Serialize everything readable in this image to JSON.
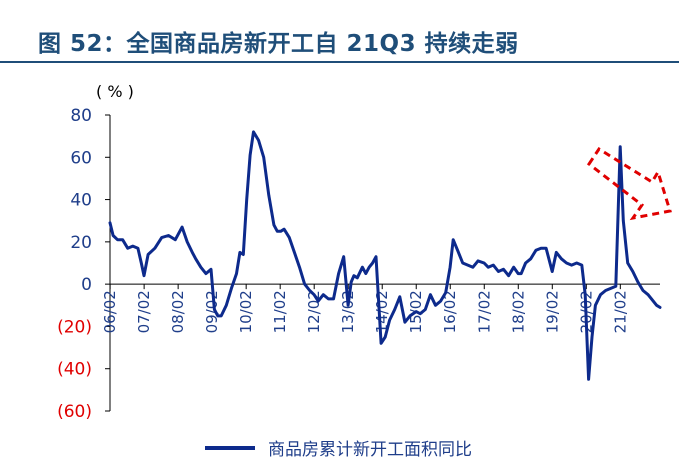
{
  "figure": {
    "title": "图 52：全国商品房新开工自 21Q3 持续走弱"
  },
  "chart_data": {
    "type": "line",
    "unit": "( % )",
    "ylim": [
      -60,
      80
    ],
    "yticks": [
      "80",
      "60",
      "40",
      "20",
      "0",
      "(20)",
      "(40)",
      "(60)"
    ],
    "ytick_values": [
      80,
      60,
      40,
      20,
      0,
      -20,
      -40,
      -60
    ],
    "ytick_colors": [
      "#1f3e8a",
      "#1f3e8a",
      "#1f3e8a",
      "#1f3e8a",
      "#1f3e8a",
      "#e00000",
      "#e00000",
      "#e00000"
    ],
    "xticks": [
      "06/02",
      "07/02",
      "08/02",
      "09/02",
      "10/02",
      "11/02",
      "12/02",
      "13/02",
      "14/02",
      "15/02",
      "16/02",
      "17/02",
      "18/02",
      "19/02",
      "20/02",
      "21/02"
    ],
    "xlim": [
      2006.08,
      2022.25
    ],
    "legend_position": "bottom",
    "series": [
      {
        "name": "商品房累计新开工面积同比",
        "color": "#0d2a8c",
        "x": [
          2006.08,
          2006.17,
          2006.3,
          2006.45,
          2006.6,
          2006.75,
          2006.9,
          2007.0,
          2007.08,
          2007.2,
          2007.4,
          2007.6,
          2007.8,
          2008.0,
          2008.2,
          2008.35,
          2008.5,
          2008.6,
          2008.75,
          2008.9,
          2009.05,
          2009.15,
          2009.25,
          2009.35,
          2009.5,
          2009.65,
          2009.8,
          2009.9,
          2010.0,
          2010.1,
          2010.2,
          2010.3,
          2010.45,
          2010.6,
          2010.75,
          2010.9,
          2011.0,
          2011.1,
          2011.2,
          2011.35,
          2011.5,
          2011.65,
          2011.8,
          2011.95,
          2012.08,
          2012.2,
          2012.35,
          2012.5,
          2012.65,
          2012.8,
          2012.95,
          2013.08,
          2013.17,
          2013.25,
          2013.35,
          2013.5,
          2013.6,
          2013.7,
          2013.8,
          2013.9,
          2014.05,
          2014.17,
          2014.3,
          2014.45,
          2014.6,
          2014.75,
          2014.9,
          2015.08,
          2015.2,
          2015.35,
          2015.5,
          2015.65,
          2015.8,
          2015.95,
          2016.08,
          2016.17,
          2016.3,
          2016.45,
          2016.6,
          2016.75,
          2016.9,
          2017.08,
          2017.2,
          2017.35,
          2017.5,
          2017.65,
          2017.8,
          2017.95,
          2018.08,
          2018.17,
          2018.3,
          2018.45,
          2018.6,
          2018.75,
          2018.9,
          2019.08,
          2019.2,
          2019.35,
          2019.5,
          2019.65,
          2019.8,
          2019.95,
          2020.05,
          2020.15,
          2020.25,
          2020.35,
          2020.5,
          2020.65,
          2020.8,
          2020.95,
          2021.08,
          2021.17,
          2021.3,
          2021.45,
          2021.6,
          2021.75,
          2021.9,
          2022.05,
          2022.15,
          2022.25
        ],
        "values": [
          29,
          23,
          21,
          21,
          17,
          18,
          17,
          10,
          4,
          14,
          17,
          22,
          23,
          21,
          27,
          20,
          15,
          12,
          8,
          5,
          7,
          -12,
          -15,
          -15,
          -10,
          -2,
          5,
          15,
          14,
          40,
          61,
          72,
          68,
          60,
          42,
          28,
          25,
          25,
          26,
          22,
          15,
          8,
          0,
          -3,
          -5,
          -8,
          -5,
          -7,
          -7,
          5,
          13,
          -10,
          1,
          4,
          3,
          8,
          5,
          8,
          10,
          13,
          -28,
          -25,
          -17,
          -12,
          -6,
          -18,
          -15,
          -13,
          -14,
          -12,
          -5,
          -10,
          -8,
          -4,
          8,
          21,
          16,
          10,
          9,
          8,
          11,
          10,
          8,
          9,
          6,
          7,
          4,
          8,
          5,
          5,
          10,
          12,
          16,
          17,
          17,
          6,
          15,
          12,
          10,
          9,
          10,
          9,
          -5,
          -45,
          -25,
          -10,
          -5,
          -3,
          -2,
          -1,
          65,
          30,
          10,
          6,
          1,
          -3,
          -5,
          -8,
          -10,
          -11
        ]
      }
    ]
  }
}
